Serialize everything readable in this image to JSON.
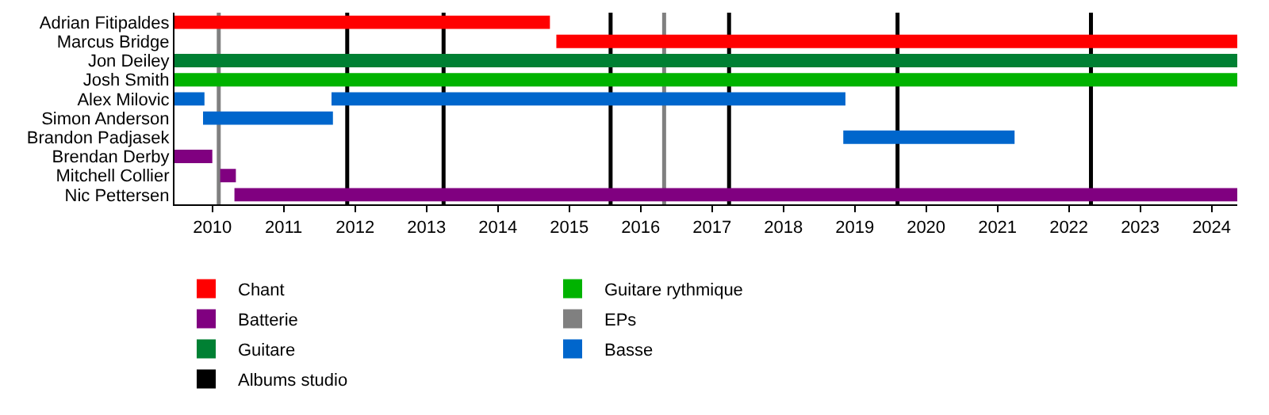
{
  "chart_data": {
    "type": "bar",
    "orientation": "horizontal",
    "categories": [
      "Adrian Fitipaldes",
      "Marcus Bridge",
      "Jon Deiley",
      "Josh Smith",
      "Alex Milovic",
      "Simon Anderson",
      "Brandon Padjasek",
      "Brendan Derby",
      "Mitchell Collier",
      "Nic Pettersen"
    ],
    "series": [
      {
        "name": "Chant",
        "color": "#ff0000",
        "values": [
          5.26,
          9.54,
          null,
          null,
          null,
          null,
          null,
          null,
          null,
          null
        ],
        "base": [
          2009.47,
          2014.82,
          null,
          null,
          null,
          null,
          null,
          null,
          null,
          null
        ]
      },
      {
        "name": "Guitare",
        "color": "#008033",
        "values": [
          null,
          null,
          14.89,
          null,
          null,
          null,
          null,
          null,
          null,
          null
        ],
        "base": [
          null,
          null,
          2009.47,
          null,
          null,
          null,
          null,
          null,
          null,
          null
        ]
      },
      {
        "name": "Guitare rythmique",
        "color": "#00b300",
        "values": [
          null,
          null,
          null,
          14.89,
          null,
          null,
          null,
          null,
          null,
          null
        ],
        "base": [
          null,
          null,
          null,
          2009.47,
          null,
          null,
          null,
          null,
          null,
          null
        ]
      },
      {
        "name": "Basse",
        "color": "#0066cc",
        "values": [
          null,
          null,
          null,
          null,
          0.42,
          1.82,
          2.4,
          null,
          null,
          null
        ],
        "base": [
          null,
          null,
          null,
          null,
          2009.47,
          2009.87,
          2018.84,
          null,
          null,
          null
        ]
      },
      {
        "color": "#0066cc",
        "values": [
          null,
          null,
          null,
          null,
          7.2,
          null,
          null,
          null,
          null,
          null
        ],
        "base": [
          null,
          null,
          null,
          null,
          2011.67,
          null,
          null,
          null,
          null,
          null
        ]
      },
      {
        "name": "Batterie",
        "color": "#800080",
        "values": [
          null,
          null,
          null,
          null,
          null,
          null,
          null,
          0.53,
          0.22,
          14.05
        ],
        "base": [
          null,
          null,
          null,
          null,
          null,
          null,
          null,
          2009.47,
          2010.11,
          2010.31
        ]
      }
    ],
    "ref_lines": [
      {
        "axis": "x",
        "value": 2011.89,
        "label": "Albums studio",
        "color": "#000000"
      },
      {
        "axis": "x",
        "value": 2013.24,
        "color": "#000000"
      },
      {
        "axis": "x",
        "value": 2015.58,
        "color": "#000000"
      },
      {
        "axis": "x",
        "value": 2017.24,
        "color": "#000000"
      },
      {
        "axis": "x",
        "value": 2019.6,
        "color": "#000000"
      },
      {
        "axis": "x",
        "value": 2022.31,
        "color": "#000000"
      },
      {
        "axis": "x",
        "value": 2010.09,
        "label": "EPs",
        "color": "#808080"
      },
      {
        "axis": "x",
        "value": 2016.33,
        "color": "#808080"
      }
    ],
    "xlim": [
      2009.47,
      2024.36
    ],
    "xticks": [
      2010,
      2011,
      2012,
      2013,
      2014,
      2015,
      2016,
      2017,
      2018,
      2019,
      2020,
      2021,
      2022,
      2023,
      2024
    ],
    "legend": "bottom"
  }
}
